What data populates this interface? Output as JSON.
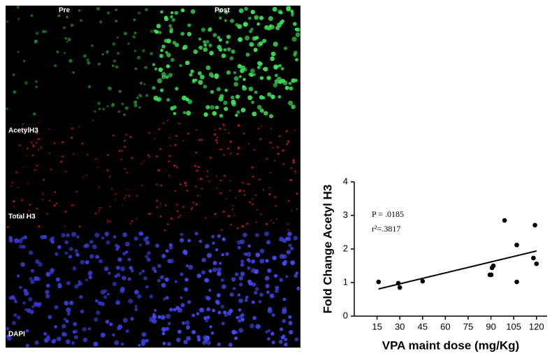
{
  "image_panel": {
    "columns": [
      "Pre",
      "Post"
    ],
    "rows": [
      "AcetylH3",
      "Total H3",
      "DAPI"
    ]
  },
  "chart_data": {
    "type": "scatter",
    "x": [
      16,
      29,
      30,
      45,
      90.7,
      91.6,
      90.2,
      89.3,
      99,
      107,
      107,
      118,
      119,
      120
    ],
    "values": [
      1.02,
      0.98,
      0.85,
      1.04,
      1.44,
      1.5,
      1.23,
      1.23,
      2.85,
      2.12,
      1.02,
      1.73,
      2.71,
      1.56
    ],
    "color": "#000000",
    "fit_line": {
      "x": [
        16,
        120
      ],
      "y": [
        0.81,
        1.94
      ]
    },
    "xlim": [
      0,
      127
    ],
    "xticks": [
      15,
      30,
      45,
      60,
      75,
      90,
      105,
      120
    ],
    "ylim": [
      0,
      4
    ],
    "yticks": [
      0,
      1,
      2,
      3,
      4
    ],
    "x_label": "VPA maint dose (mg/Kg)",
    "y_label": "Fold Change Acetyl H3",
    "annotations": [
      "P = .0185",
      "r²=.3817"
    ]
  }
}
